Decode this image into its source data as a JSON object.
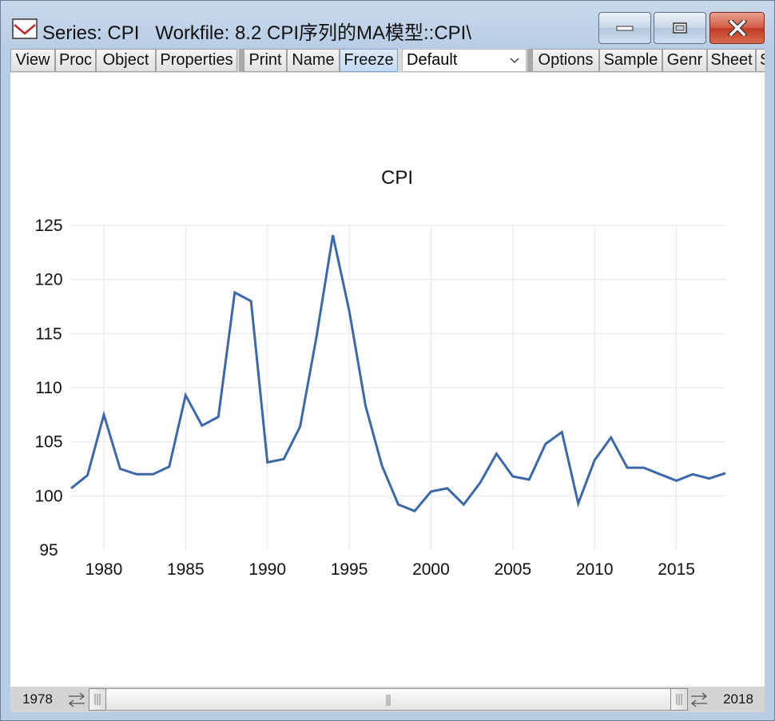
{
  "window": {
    "title": "Series: CPI   Workfile: 8.2 CPI序列的MA模型::CPI\\",
    "icon": "eviews-series-icon"
  },
  "toolbar": {
    "view": "View",
    "proc": "Proc",
    "object": "Object",
    "properties": "Properties",
    "print": "Print",
    "name": "Name",
    "freeze": "Freeze",
    "view_select": "Default",
    "options": "Options",
    "sample": "Sample",
    "genr": "Genr",
    "sheet": "Sheet",
    "overflow": "S"
  },
  "scrollbar": {
    "start_label": "1978",
    "end_label": "2018"
  },
  "colors": {
    "series_line": "#3b68ab",
    "close_button": "#c8432a"
  },
  "chart_data": {
    "type": "line",
    "title": "CPI",
    "xlabel": "",
    "ylabel": "",
    "xlim": [
      1978,
      2018
    ],
    "ylim": [
      95,
      125
    ],
    "x_ticks": [
      1980,
      1985,
      1990,
      1995,
      2000,
      2005,
      2010,
      2015
    ],
    "y_ticks": [
      95,
      100,
      105,
      110,
      115,
      120,
      125
    ],
    "grid": true,
    "legend": "none",
    "x": [
      1978,
      1979,
      1980,
      1981,
      1982,
      1983,
      1984,
      1985,
      1986,
      1987,
      1988,
      1989,
      1990,
      1991,
      1992,
      1993,
      1994,
      1995,
      1996,
      1997,
      1998,
      1999,
      2000,
      2001,
      2002,
      2003,
      2004,
      2005,
      2006,
      2007,
      2008,
      2009,
      2010,
      2011,
      2012,
      2013,
      2014,
      2015,
      2016,
      2017,
      2018
    ],
    "series": [
      {
        "values": [
          100.7,
          101.9,
          107.5,
          102.5,
          102.0,
          102.0,
          102.7,
          109.3,
          106.5,
          107.3,
          118.8,
          118.0,
          103.1,
          103.4,
          106.4,
          114.7,
          124.1,
          117.1,
          108.3,
          102.8,
          99.2,
          98.6,
          100.4,
          100.7,
          99.2,
          101.2,
          103.9,
          101.8,
          101.5,
          104.8,
          105.9,
          99.3,
          103.3,
          105.4,
          102.6,
          102.6,
          102.0,
          101.4,
          102.0,
          101.6,
          102.1
        ]
      }
    ]
  }
}
